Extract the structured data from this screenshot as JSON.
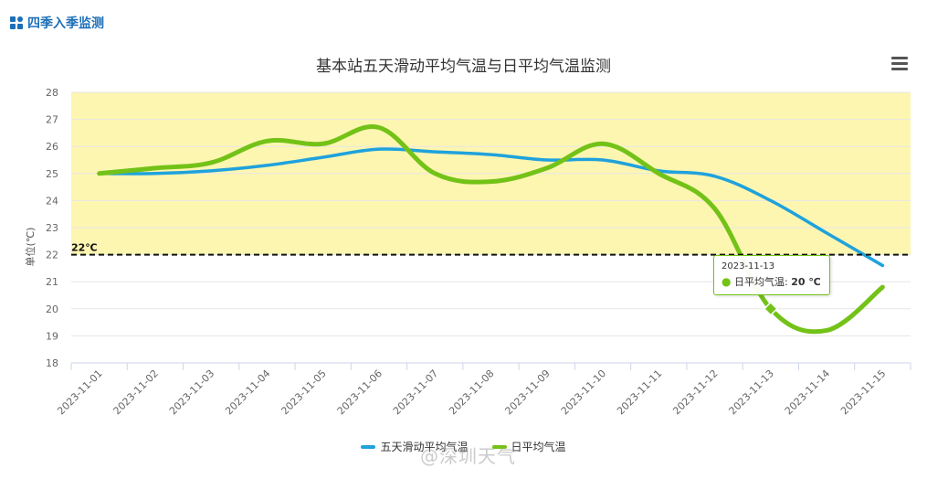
{
  "header": {
    "icon": "grid-icon",
    "title": "四季入季监测"
  },
  "chart_data": {
    "type": "line",
    "title": "基本站五天滑动平均气温与日平均气温监测",
    "ylabel": "单位(℃)",
    "xlabel": "",
    "ylim": [
      18,
      28
    ],
    "yticks": [
      18,
      19,
      20,
      21,
      22,
      23,
      24,
      25,
      26,
      27,
      28
    ],
    "categories": [
      "2023-11-01",
      "2023-11-02",
      "2023-11-03",
      "2023-11-04",
      "2023-11-05",
      "2023-11-06",
      "2023-11-07",
      "2023-11-08",
      "2023-11-09",
      "2023-11-10",
      "2023-11-11",
      "2023-11-12",
      "2023-11-13",
      "2023-11-14",
      "2023-11-15"
    ],
    "series": [
      {
        "name": "五天滑动平均气温",
        "color": "#1fa2dc",
        "values": [
          25.0,
          25.0,
          25.1,
          25.3,
          25.6,
          25.9,
          25.8,
          25.7,
          25.5,
          25.5,
          25.1,
          24.9,
          24.0,
          22.8,
          21.6
        ]
      },
      {
        "name": "日平均气温",
        "color": "#73c217",
        "values": [
          25.0,
          25.2,
          25.4,
          26.2,
          26.1,
          26.7,
          25.0,
          24.7,
          25.2,
          26.1,
          25.0,
          23.7,
          20.0,
          19.2,
          20.8
        ]
      }
    ],
    "threshold": {
      "value": 22,
      "label": "22℃"
    },
    "band": {
      "from": 22,
      "to": 28,
      "color": "#fdf6b1"
    },
    "grid": true,
    "legend_position": "bottom-center",
    "tooltip": {
      "date": "2023-11-13",
      "series": "日平均气温",
      "label": "日平均气温:",
      "value": "20 ℃"
    }
  },
  "watermark": "@深圳天气"
}
